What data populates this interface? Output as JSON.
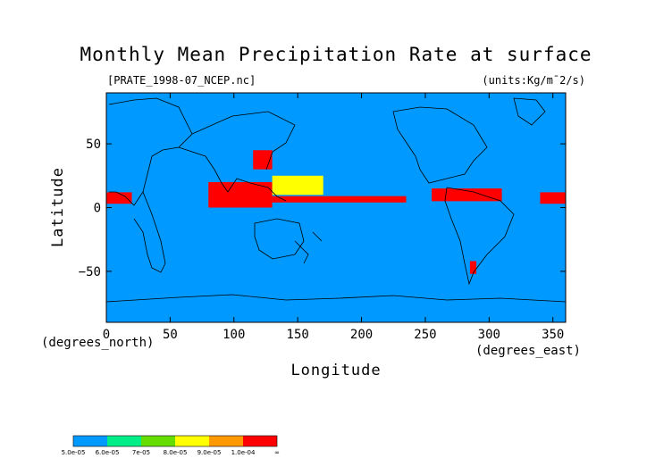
{
  "chart_data": {
    "type": "heatmap",
    "title": "Monthly Mean Precipitation Rate at surface",
    "file_label": "[PRATE_1998-07_NCEP.nc]",
    "units_label": "(units:Kg/m^2/s)",
    "xlabel": "Longitude",
    "ylabel": "Latitude",
    "x_unit_label": "(degrees_east)",
    "y_unit_label": "(degrees_north)",
    "xlim": [
      0,
      360
    ],
    "ylim": [
      -90,
      90
    ],
    "x_ticks": [
      0,
      50,
      100,
      150,
      200,
      250,
      300,
      350
    ],
    "x_tick_labels": [
      "0",
      "50",
      "100",
      "150",
      "200",
      "250",
      "300",
      "350"
    ],
    "y_ticks": [
      50,
      0,
      -50
    ],
    "y_tick_labels": [
      "50",
      "0",
      "−50"
    ],
    "colorbar": {
      "colors": [
        "#0099ff",
        "#00ee88",
        "#66dd00",
        "#ffff00",
        "#ff9900",
        "#ff0000"
      ],
      "labels": [
        "5.0e-05",
        "6.0e-05",
        "7e-05",
        "8.0e-05",
        "9.0e-05",
        "1.0e-04",
        "∞"
      ]
    },
    "regions": [
      {
        "level": 5,
        "lon": [
          80,
          130
        ],
        "lat": [
          0,
          20
        ]
      },
      {
        "level": 5,
        "lon": [
          130,
          235
        ],
        "lat": [
          4,
          9
        ]
      },
      {
        "level": 5,
        "lon": [
          255,
          310
        ],
        "lat": [
          5,
          15
        ]
      },
      {
        "level": 5,
        "lon": [
          0,
          20
        ],
        "lat": [
          3,
          12
        ]
      },
      {
        "level": 5,
        "lon": [
          340,
          360
        ],
        "lat": [
          3,
          12
        ]
      },
      {
        "level": 5,
        "lon": [
          115,
          130
        ],
        "lat": [
          30,
          45
        ]
      },
      {
        "level": 5,
        "lon": [
          285,
          290
        ],
        "lat": [
          -52,
          -42
        ]
      },
      {
        "level": 3,
        "lon": [
          130,
          170
        ],
        "lat": [
          10,
          25
        ]
      }
    ]
  },
  "colors": {
    "background": "#0099ff",
    "coastline": "#000000"
  }
}
